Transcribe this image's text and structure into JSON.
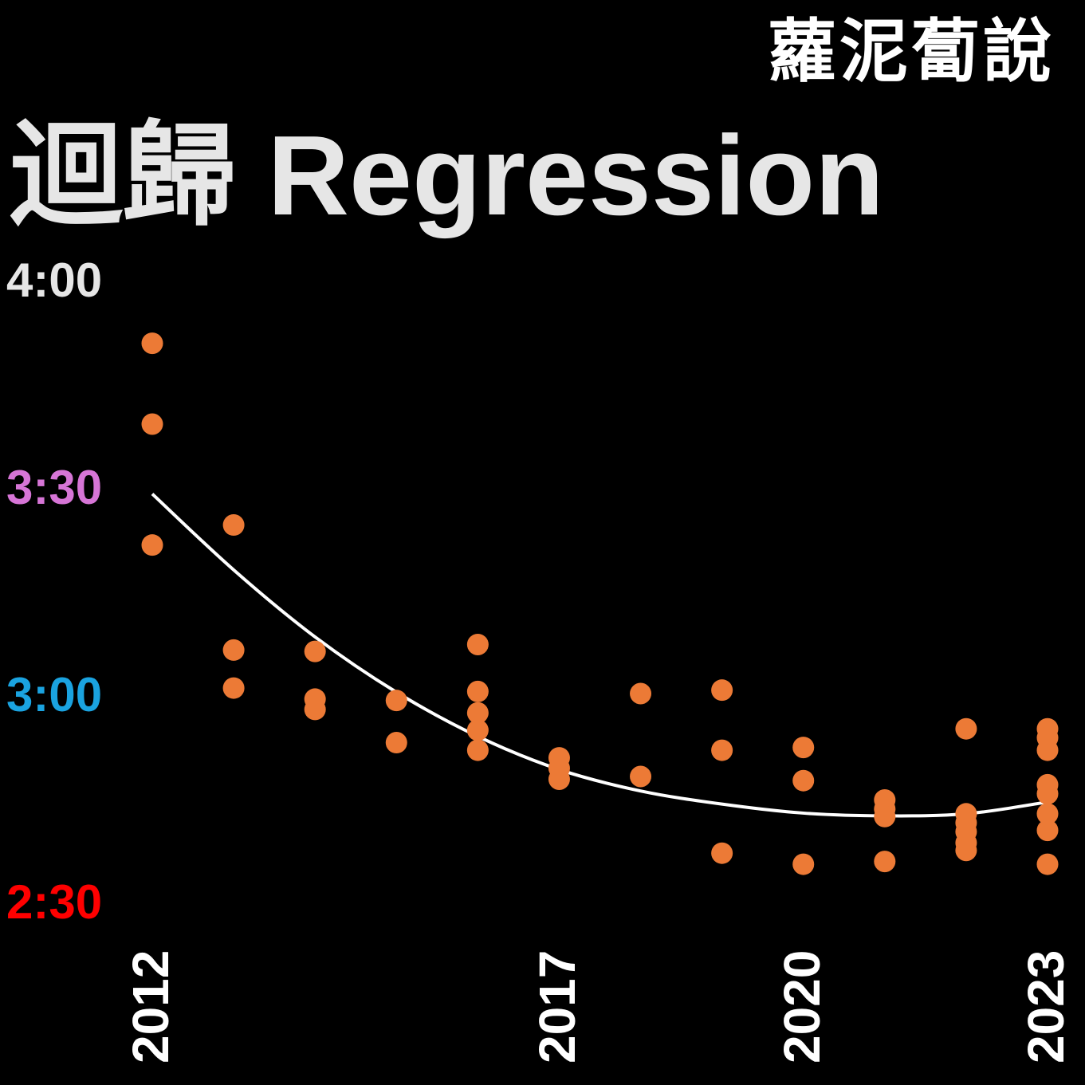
{
  "logo": {
    "text": "蘿泥蔔說"
  },
  "chart_data": {
    "type": "scatter",
    "title": "迴歸 Regression",
    "xlabel": "",
    "ylabel": "",
    "xlim": [
      2012,
      2023
    ],
    "ylim": [
      150,
      240
    ],
    "y_unit": "minutes (h:mm)",
    "x_ticks": [
      {
        "value": 2012,
        "label": "2012"
      },
      {
        "value": 2017,
        "label": "2017"
      },
      {
        "value": 2020,
        "label": "2020"
      },
      {
        "value": 2023,
        "label": "2023"
      }
    ],
    "y_ticks": [
      {
        "value": 240,
        "label": "4:00",
        "color": "#e6e6e6"
      },
      {
        "value": 210,
        "label": "3:30",
        "color": "#d675d6"
      },
      {
        "value": 180,
        "label": "3:00",
        "color": "#1aa3e0"
      },
      {
        "value": 150,
        "label": "2:30",
        "color": "#ff0000"
      }
    ],
    "point_color": "#ec7a36",
    "trend_color": "#ffffff",
    "grid": false,
    "legend": "none",
    "points": [
      {
        "x": 2012,
        "y": 230.7
      },
      {
        "x": 2012,
        "y": 219.0
      },
      {
        "x": 2012,
        "y": 201.5
      },
      {
        "x": 2013,
        "y": 204.4
      },
      {
        "x": 2013,
        "y": 186.3
      },
      {
        "x": 2013,
        "y": 180.8
      },
      {
        "x": 2014,
        "y": 186.1
      },
      {
        "x": 2014,
        "y": 179.2
      },
      {
        "x": 2014,
        "y": 177.7
      },
      {
        "x": 2015,
        "y": 179.0
      },
      {
        "x": 2015,
        "y": 172.9
      },
      {
        "x": 2016,
        "y": 187.1
      },
      {
        "x": 2016,
        "y": 180.3
      },
      {
        "x": 2016,
        "y": 177.2
      },
      {
        "x": 2016,
        "y": 174.7
      },
      {
        "x": 2016,
        "y": 171.8
      },
      {
        "x": 2017,
        "y": 170.7
      },
      {
        "x": 2017,
        "y": 169.2
      },
      {
        "x": 2017,
        "y": 167.6
      },
      {
        "x": 2018,
        "y": 180.0
      },
      {
        "x": 2018,
        "y": 168.0
      },
      {
        "x": 2019,
        "y": 180.5
      },
      {
        "x": 2019,
        "y": 171.8
      },
      {
        "x": 2019,
        "y": 156.9
      },
      {
        "x": 2020,
        "y": 172.2
      },
      {
        "x": 2020,
        "y": 167.4
      },
      {
        "x": 2020,
        "y": 155.3
      },
      {
        "x": 2021,
        "y": 164.6
      },
      {
        "x": 2021,
        "y": 163.3
      },
      {
        "x": 2021,
        "y": 162.2
      },
      {
        "x": 2021,
        "y": 155.7
      },
      {
        "x": 2022,
        "y": 174.9
      },
      {
        "x": 2022,
        "y": 162.6
      },
      {
        "x": 2022,
        "y": 161.3
      },
      {
        "x": 2022,
        "y": 160.0
      },
      {
        "x": 2022,
        "y": 158.4
      },
      {
        "x": 2022,
        "y": 157.3
      },
      {
        "x": 2023,
        "y": 174.9
      },
      {
        "x": 2023,
        "y": 173.6
      },
      {
        "x": 2023,
        "y": 171.8
      },
      {
        "x": 2023,
        "y": 166.8
      },
      {
        "x": 2023,
        "y": 165.5
      },
      {
        "x": 2023,
        "y": 162.6
      },
      {
        "x": 2023,
        "y": 160.2
      },
      {
        "x": 2023,
        "y": 155.3
      }
    ],
    "trend": [
      {
        "x": 2012,
        "y": 208.9
      },
      {
        "x": 2013,
        "y": 197.9
      },
      {
        "x": 2014,
        "y": 188.2
      },
      {
        "x": 2015,
        "y": 180.2
      },
      {
        "x": 2016,
        "y": 173.8
      },
      {
        "x": 2017,
        "y": 169.0
      },
      {
        "x": 2018,
        "y": 165.9
      },
      {
        "x": 2019,
        "y": 164.0
      },
      {
        "x": 2020,
        "y": 162.7
      },
      {
        "x": 2021,
        "y": 162.3
      },
      {
        "x": 2022,
        "y": 162.6
      },
      {
        "x": 2023,
        "y": 164.3
      }
    ]
  }
}
